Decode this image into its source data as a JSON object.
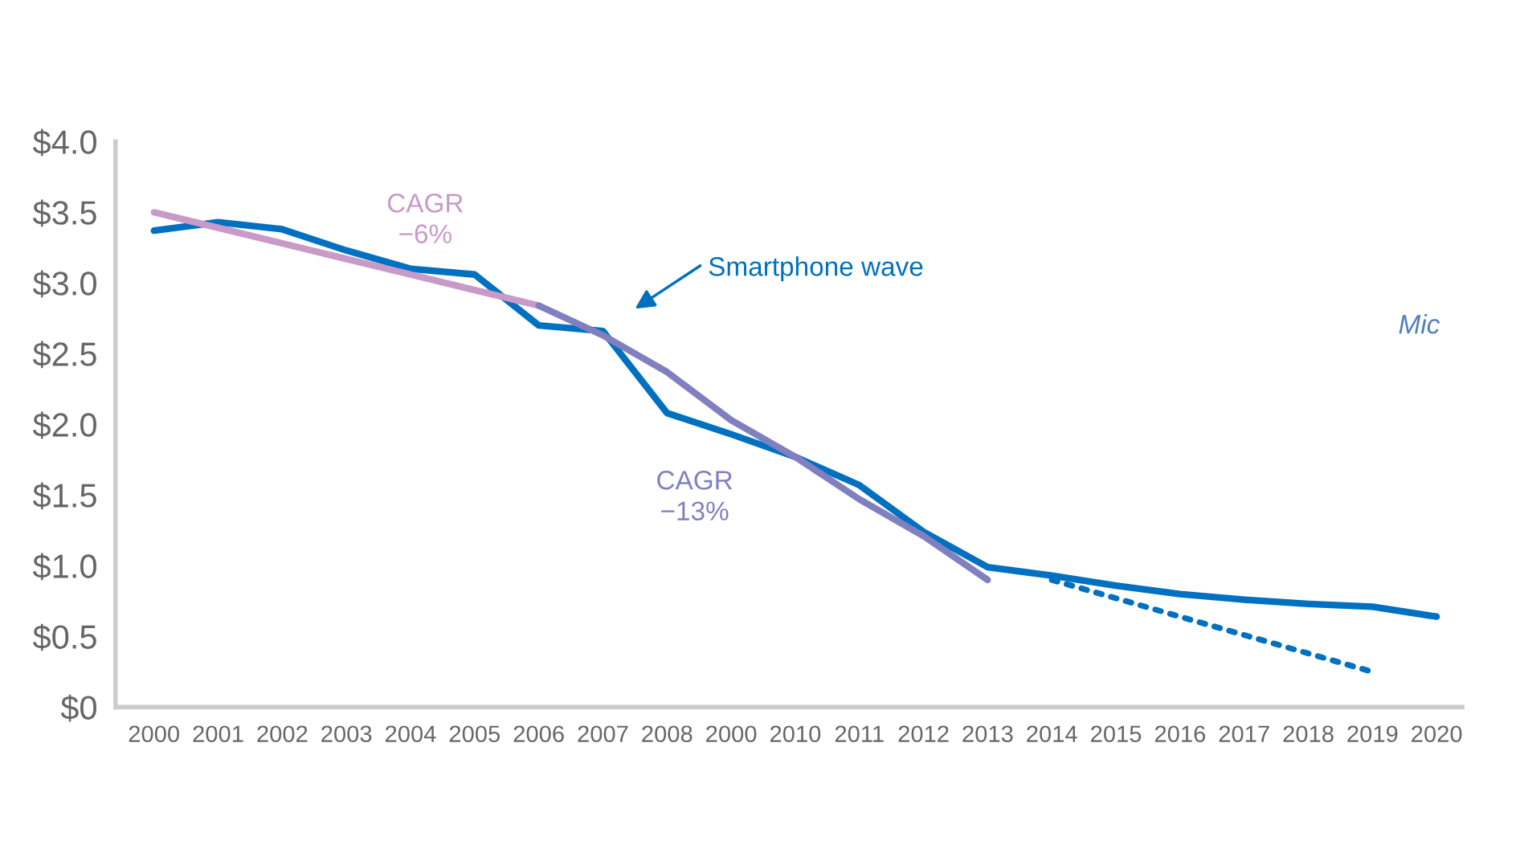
{
  "chart_data": {
    "type": "line",
    "categories": [
      "2000",
      "2001",
      "2002",
      "2003",
      "2004",
      "2005",
      "2006",
      "2007",
      "2008",
      "2000",
      "2010",
      "2011",
      "2012",
      "2013",
      "2014",
      "2015",
      "2016",
      "2017",
      "2018",
      "2019",
      "2020"
    ],
    "series": [
      {
        "color": "#0070c0",
        "values": [
          3.37,
          3.43,
          3.38,
          3.23,
          3.1,
          3.06,
          2.7,
          2.66,
          2.08,
          1.93,
          1.77,
          1.57,
          1.24,
          0.99,
          0.93,
          0.86,
          0.8,
          0.76,
          0.73,
          0.71,
          0.64
        ]
      },
      {
        "color": "#c89ac8",
        "values": [
          3.5,
          3.39,
          3.28,
          3.17,
          3.06,
          2.95,
          2.84,
          null,
          null,
          null,
          null,
          null,
          null,
          null,
          null,
          null,
          null,
          null,
          null,
          null,
          null
        ]
      },
      {
        "color": "#8080c0",
        "values": [
          null,
          null,
          null,
          null,
          null,
          null,
          2.84,
          2.63,
          2.37,
          2.03,
          1.77,
          1.47,
          1.21,
          0.9,
          null,
          null,
          null,
          null,
          null,
          null,
          null
        ]
      },
      {
        "color": "#0070c0",
        "line_style": "dotted",
        "values": [
          null,
          null,
          null,
          null,
          null,
          null,
          null,
          null,
          null,
          null,
          null,
          null,
          null,
          null,
          0.9,
          0.77,
          0.64,
          0.51,
          0.38,
          0.25,
          null
        ]
      }
    ],
    "ylim": [
      0,
      4.0
    ],
    "yticks": [
      {
        "value": 0,
        "label": "$0"
      },
      {
        "value": 0.5,
        "label": "$0.5"
      },
      {
        "value": 1.0,
        "label": "$1.0"
      },
      {
        "value": 1.5,
        "label": "$1.5"
      },
      {
        "value": 2.0,
        "label": "$2.0"
      },
      {
        "value": 2.5,
        "label": "$2.5"
      },
      {
        "value": 3.0,
        "label": "$3.0"
      },
      {
        "value": 3.5,
        "label": "$3.5"
      },
      {
        "value": 4.0,
        "label": "$4.0"
      }
    ],
    "grid": false,
    "legend": false,
    "line_style": "solid",
    "annotations": [
      "CAGR\n−6%",
      "Smartphone wave",
      "CAGR\n−13%",
      "Mic"
    ]
  }
}
